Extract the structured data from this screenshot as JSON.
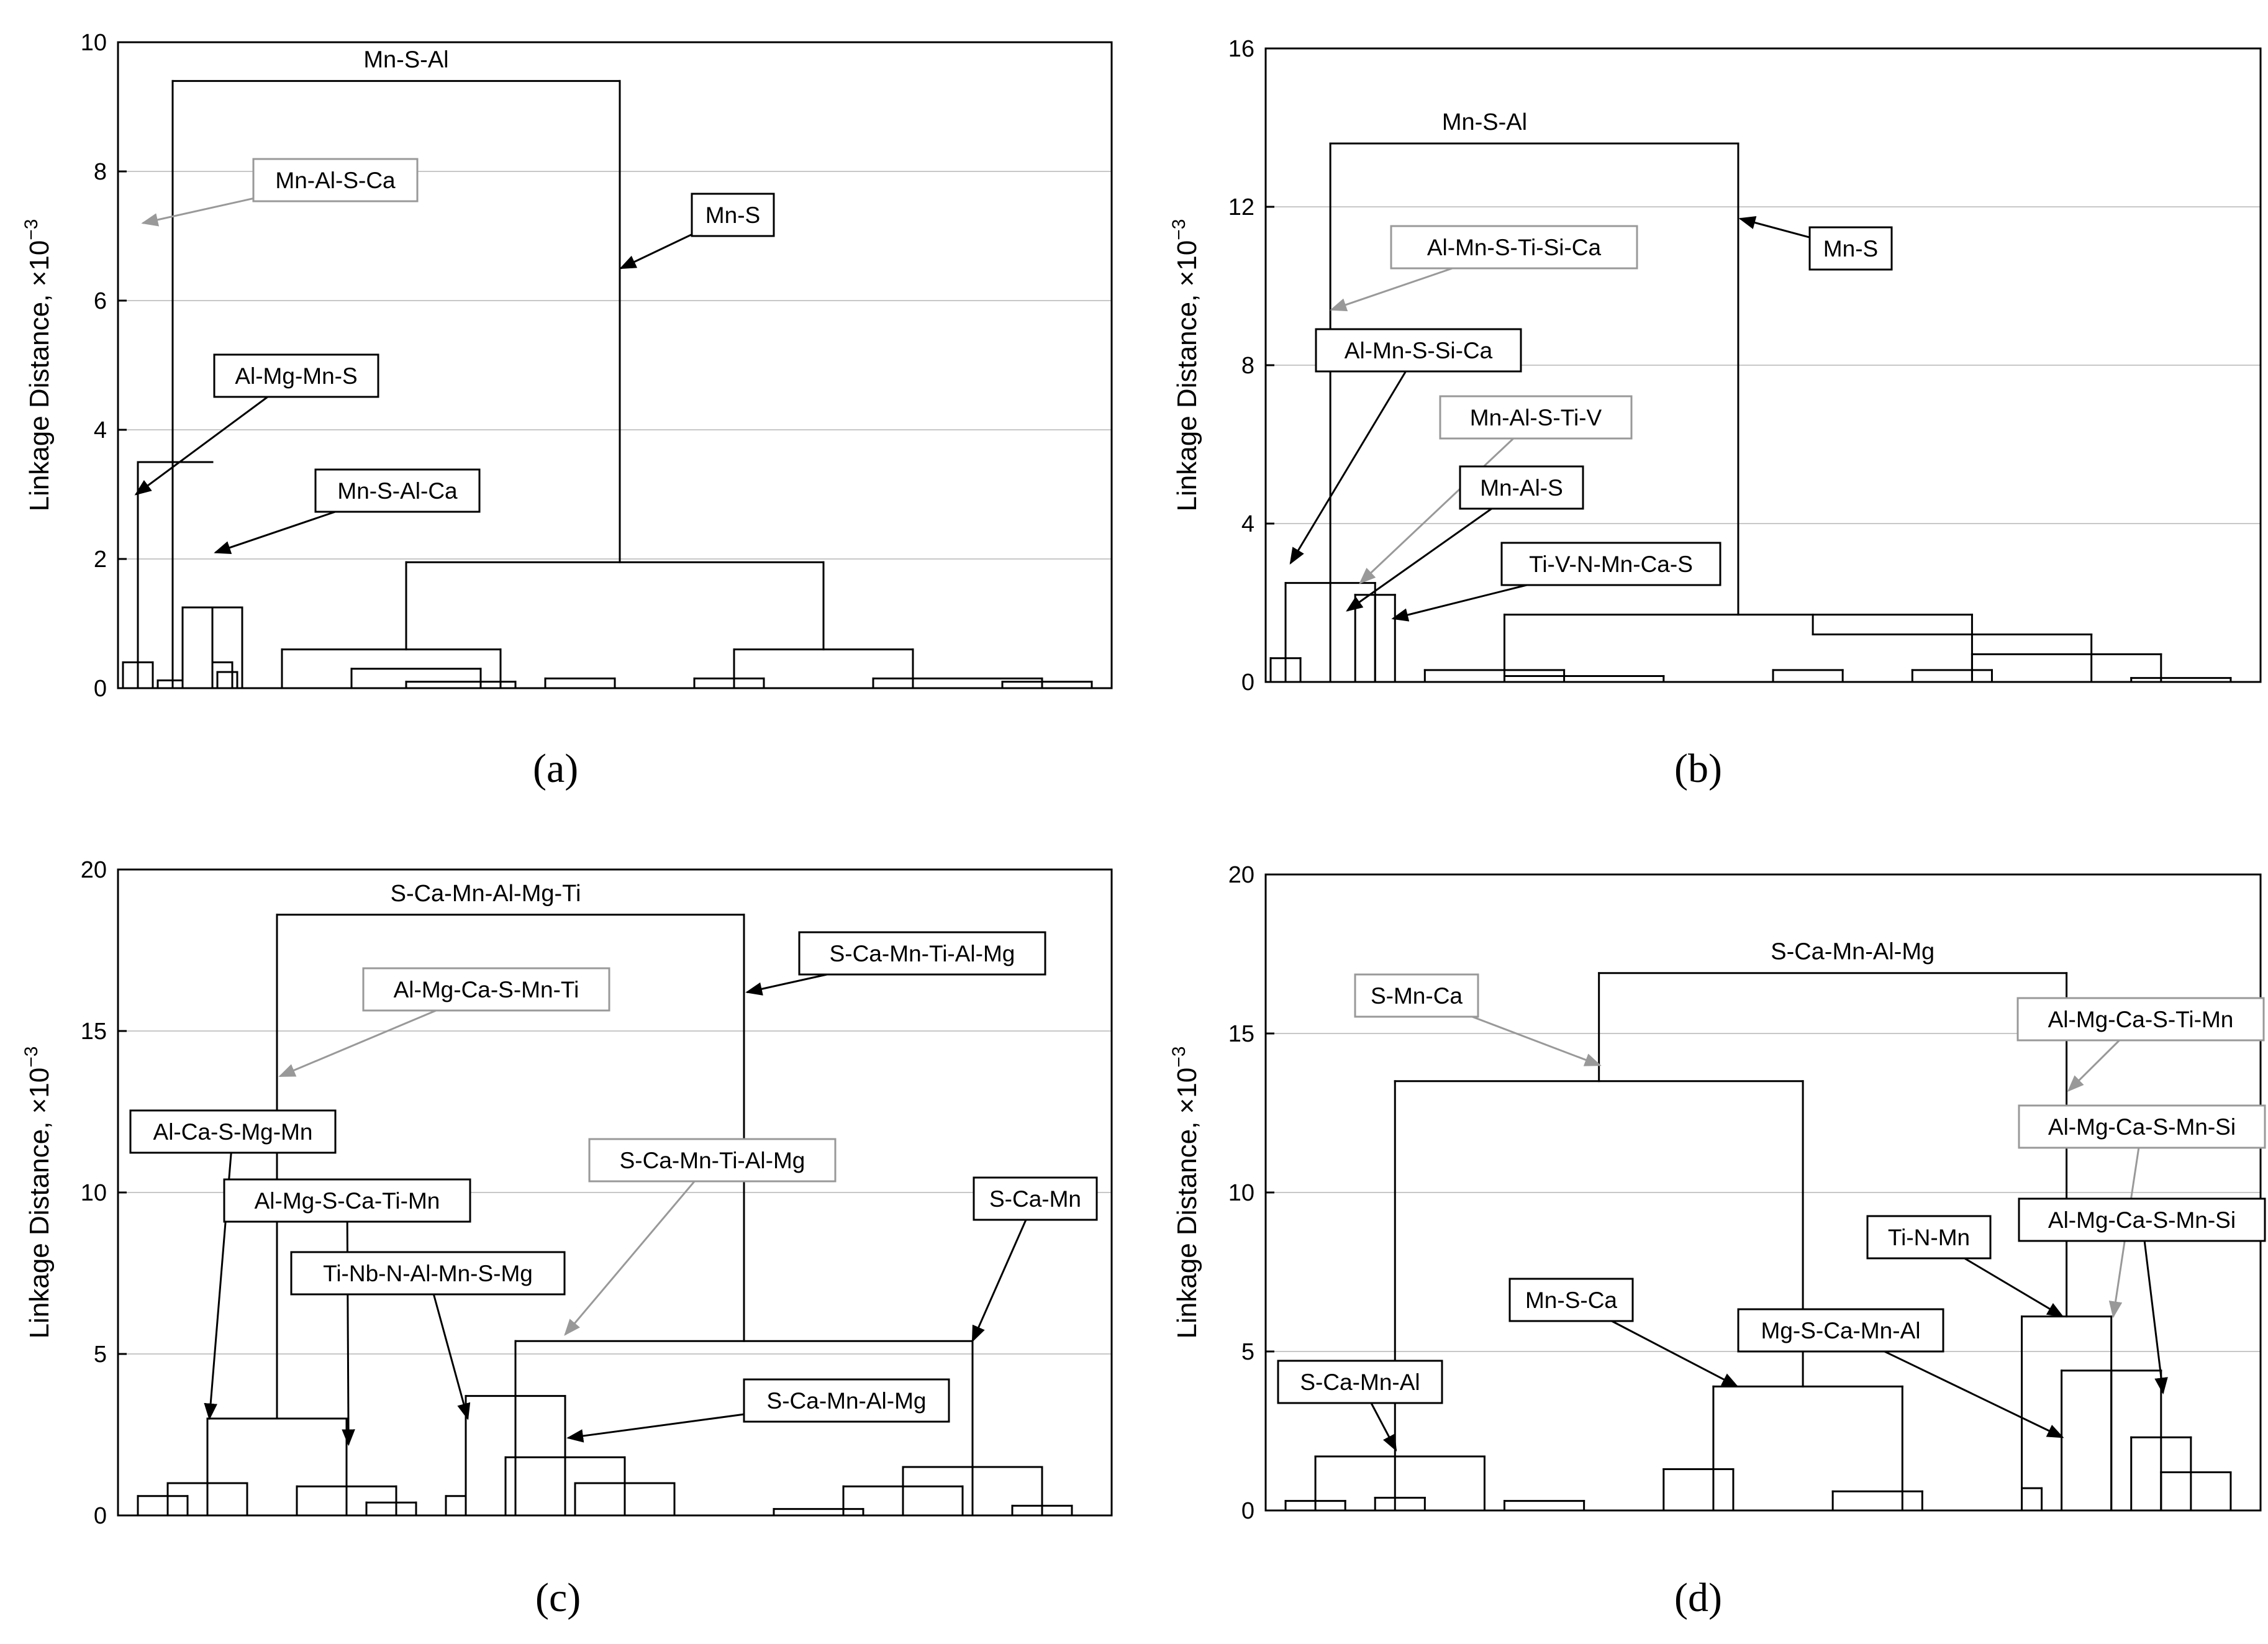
{
  "chart_data": [
    {
      "type": "dendrogram",
      "panel_label": "a",
      "ylabel": "Linkage Distance, ×10",
      "ylabel_exp": "−3",
      "ylim": [
        0,
        10
      ],
      "yticks": [
        0,
        2,
        4,
        6,
        8,
        10
      ],
      "grid": true,
      "xlim": [
        0,
        100
      ],
      "root_label": "Mn-S-Al",
      "links": [
        [
          5.5,
          0,
          5.5,
          3.5
        ],
        [
          2,
          0,
          2,
          3.5
        ],
        [
          2,
          3.5,
          9.5,
          3.5
        ],
        [
          9.5,
          0,
          9.5,
          1.25
        ],
        [
          6.5,
          1.25,
          12.5,
          1.25
        ],
        [
          6.5,
          0,
          6.5,
          1.25
        ],
        [
          12.5,
          0,
          12.5,
          1.25
        ],
        [
          5.5,
          3.5,
          5.5,
          9.4
        ],
        [
          5.5,
          9.4,
          50.5,
          9.4
        ],
        [
          50.5,
          9.4,
          50.5,
          1.95
        ],
        [
          29,
          1.95,
          71,
          1.95
        ],
        [
          29,
          1.95,
          29,
          0.6
        ],
        [
          71,
          1.95,
          71,
          0.6
        ],
        [
          16.5,
          0.6,
          38.5,
          0.6
        ],
        [
          16.5,
          0,
          16.5,
          0.6
        ],
        [
          38.5,
          0,
          38.5,
          0.6
        ],
        [
          23.5,
          0,
          23.5,
          0.3
        ],
        [
          23.5,
          0.3,
          36.5,
          0.3
        ],
        [
          36.5,
          0,
          36.5,
          0.3
        ],
        [
          29,
          0,
          29,
          0.1
        ],
        [
          29,
          0.1,
          40,
          0.1
        ],
        [
          40,
          0,
          40,
          0.1
        ],
        [
          43,
          0,
          43,
          0.15
        ],
        [
          43,
          0.15,
          50,
          0.15
        ],
        [
          50,
          0,
          50,
          0.15
        ],
        [
          62,
          0.6,
          80,
          0.6
        ],
        [
          62,
          0,
          62,
          0.6
        ],
        [
          80,
          0,
          80,
          0.6
        ],
        [
          58,
          0,
          58,
          0.15
        ],
        [
          58,
          0.15,
          65,
          0.15
        ],
        [
          65,
          0,
          65,
          0.15
        ],
        [
          76,
          0,
          76,
          0.15
        ],
        [
          76,
          0.15,
          93,
          0.15
        ],
        [
          93,
          0,
          93,
          0.15
        ],
        [
          89,
          0,
          89,
          0.1
        ],
        [
          89,
          0.1,
          98,
          0.1
        ],
        [
          98,
          0,
          98,
          0.1
        ],
        [
          0.5,
          0,
          0.5,
          0.4
        ],
        [
          0.5,
          0.4,
          3.5,
          0.4
        ],
        [
          3.5,
          0,
          3.5,
          0.4
        ],
        [
          9.5,
          0,
          9.5,
          0.4
        ],
        [
          9.5,
          0.4,
          11.5,
          0.4
        ],
        [
          11.5,
          0,
          11.5,
          0.4
        ],
        [
          4,
          0,
          4,
          0.12
        ],
        [
          4,
          0.12,
          6.5,
          0.12
        ],
        [
          6.5,
          0,
          6.5,
          0.12
        ],
        [
          10,
          0,
          10,
          0.25
        ],
        [
          10,
          0.25,
          12,
          0.25
        ],
        [
          12,
          0,
          12,
          0.25
        ]
      ]
    },
    {
      "type": "dendrogram",
      "panel_label": "b",
      "ylabel": "Linkage Distance, ×10",
      "ylabel_exp": "−3",
      "ylim": [
        0,
        16
      ],
      "yticks": [
        0,
        4,
        8,
        12,
        16
      ],
      "grid": true,
      "xlim": [
        0,
        100
      ],
      "root_label": "Mn-S-Al",
      "links": [
        [
          6.5,
          0,
          6.5,
          2.5
        ],
        [
          2,
          2.5,
          11,
          2.5
        ],
        [
          2,
          0,
          2,
          2.5
        ],
        [
          11,
          0,
          11,
          2.5
        ],
        [
          11,
          0,
          11,
          2.2
        ],
        [
          9,
          2.2,
          13,
          2.2
        ],
        [
          9,
          0,
          9,
          2.2
        ],
        [
          13,
          0,
          13,
          2.2
        ],
        [
          6.5,
          2.5,
          6.5,
          13.6
        ],
        [
          6.5,
          13.6,
          47.5,
          13.6
        ],
        [
          47.5,
          13.6,
          47.5,
          1.7
        ],
        [
          24,
          1.7,
          71,
          1.7
        ],
        [
          24,
          0,
          24,
          1.7
        ],
        [
          71,
          0,
          71,
          1.7
        ],
        [
          55,
          1.7,
          55,
          1.2
        ],
        [
          55,
          1.2,
          83,
          1.2
        ],
        [
          83,
          0,
          83,
          1.2
        ],
        [
          71,
          0,
          71,
          0.7
        ],
        [
          71,
          0.7,
          90,
          0.7
        ],
        [
          90,
          0,
          90,
          0.7
        ],
        [
          0.5,
          0,
          0.5,
          0.6
        ],
        [
          0.5,
          0.6,
          3.5,
          0.6
        ],
        [
          3.5,
          0,
          3.5,
          0.6
        ],
        [
          16,
          0,
          16,
          0.3
        ],
        [
          16,
          0.3,
          30,
          0.3
        ],
        [
          30,
          0,
          30,
          0.3
        ],
        [
          24,
          0,
          24,
          0.15
        ],
        [
          24,
          0.15,
          40,
          0.15
        ],
        [
          40,
          0,
          40,
          0.15
        ],
        [
          51,
          0,
          51,
          0.3
        ],
        [
          51,
          0.3,
          58,
          0.3
        ],
        [
          58,
          0,
          58,
          0.3
        ],
        [
          65,
          0,
          65,
          0.3
        ],
        [
          65,
          0.3,
          73,
          0.3
        ],
        [
          73,
          0,
          73,
          0.3
        ],
        [
          87,
          0,
          87,
          0.1
        ],
        [
          87,
          0.1,
          97,
          0.1
        ],
        [
          97,
          0,
          97,
          0.1
        ]
      ]
    },
    {
      "type": "dendrogram",
      "panel_label": "c",
      "ylabel": "Linkage Distance, ×10",
      "ylabel_exp": "−3",
      "ylim": [
        0,
        20
      ],
      "yticks": [
        0,
        5,
        10,
        15,
        20
      ],
      "grid": true,
      "xlim": [
        0,
        100
      ],
      "root_label": "S-Ca-Mn-Al-Mg-Ti",
      "links": [
        [
          9,
          0,
          9,
          3
        ],
        [
          9,
          3,
          23,
          3
        ],
        [
          23,
          0,
          23,
          3
        ],
        [
          5,
          0,
          5,
          1
        ],
        [
          5,
          1,
          13,
          1
        ],
        [
          13,
          0,
          13,
          1
        ],
        [
          18,
          0,
          18,
          0.9
        ],
        [
          18,
          0.9,
          28,
          0.9
        ],
        [
          28,
          0,
          28,
          0.9
        ],
        [
          16,
          3,
          16,
          18.6
        ],
        [
          16,
          18.6,
          63,
          18.6
        ],
        [
          63,
          18.6,
          63,
          5.4
        ],
        [
          40,
          5.4,
          86,
          5.4
        ],
        [
          40,
          0,
          40,
          5.4
        ],
        [
          86,
          0,
          86,
          5.4
        ],
        [
          35,
          0,
          35,
          3.7
        ],
        [
          35,
          3.7,
          45,
          3.7
        ],
        [
          45,
          0,
          45,
          3.7
        ],
        [
          39,
          0,
          39,
          1.8
        ],
        [
          39,
          1.8,
          51,
          1.8
        ],
        [
          51,
          0,
          51,
          1.8
        ],
        [
          46,
          0,
          46,
          1
        ],
        [
          46,
          1,
          56,
          1
        ],
        [
          56,
          0,
          56,
          1
        ],
        [
          33,
          0,
          33,
          0.6
        ],
        [
          33,
          0.6,
          35,
          0.6
        ],
        [
          35,
          0,
          35,
          0.6
        ],
        [
          73,
          0,
          73,
          0.9
        ],
        [
          73,
          0.9,
          85,
          0.9
        ],
        [
          85,
          0,
          85,
          0.9
        ],
        [
          79,
          0,
          79,
          1.5
        ],
        [
          79,
          1.5,
          93,
          1.5
        ],
        [
          93,
          0,
          93,
          1.5
        ],
        [
          66,
          0,
          66,
          0.2
        ],
        [
          66,
          0.2,
          75,
          0.2
        ],
        [
          75,
          0,
          75,
          0.2
        ],
        [
          90,
          0,
          90,
          0.3
        ],
        [
          90,
          0.3,
          96,
          0.3
        ],
        [
          96,
          0,
          96,
          0.3
        ],
        [
          2,
          0,
          2,
          0.6
        ],
        [
          2,
          0.6,
          7,
          0.6
        ],
        [
          7,
          0,
          7,
          0.6
        ],
        [
          25,
          0,
          25,
          0.4
        ],
        [
          25,
          0.4,
          30,
          0.4
        ],
        [
          30,
          0,
          30,
          0.4
        ]
      ]
    },
    {
      "type": "dendrogram",
      "panel_label": "d",
      "ylabel": "Linkage Distance, ×10",
      "ylabel_exp": "−3",
      "ylim": [
        0,
        20
      ],
      "yticks": [
        0,
        5,
        10,
        15,
        20
      ],
      "grid": true,
      "xlim": [
        0,
        100
      ],
      "root_label": "S-Ca-Mn-Al-Mg",
      "links": [
        [
          13,
          0,
          13,
          1.7
        ],
        [
          5,
          1.7,
          22,
          1.7
        ],
        [
          5,
          0,
          5,
          1.7
        ],
        [
          22,
          0,
          22,
          1.7
        ],
        [
          13,
          1.7,
          13,
          13.5
        ],
        [
          13,
          13.5,
          54,
          13.5
        ],
        [
          54,
          13.5,
          54,
          3.9
        ],
        [
          45,
          3.9,
          64,
          3.9
        ],
        [
          45,
          0,
          45,
          3.9
        ],
        [
          64,
          0,
          64,
          3.9
        ],
        [
          40,
          0,
          40,
          1.3
        ],
        [
          40,
          1.3,
          47,
          1.3
        ],
        [
          47,
          0,
          47,
          1.3
        ],
        [
          57,
          0,
          57,
          0.6
        ],
        [
          57,
          0.6,
          66,
          0.6
        ],
        [
          66,
          0,
          66,
          0.6
        ],
        [
          33.5,
          13.5,
          33.5,
          16.9
        ],
        [
          33.5,
          16.9,
          80.5,
          16.9
        ],
        [
          80.5,
          16.9,
          80.5,
          6.1
        ],
        [
          76,
          6.1,
          85,
          6.1
        ],
        [
          76,
          0,
          76,
          6.1
        ],
        [
          85,
          0,
          85,
          6.1
        ],
        [
          85,
          0,
          85,
          4.4
        ],
        [
          80,
          4.4,
          90,
          4.4
        ],
        [
          80,
          0,
          80,
          4.4
        ],
        [
          90,
          0,
          90,
          4.4
        ],
        [
          87,
          0,
          87,
          2.3
        ],
        [
          87,
          2.3,
          93,
          2.3
        ],
        [
          93,
          0,
          93,
          2.3
        ],
        [
          90,
          0,
          90,
          1.2
        ],
        [
          90,
          1.2,
          97,
          1.2
        ],
        [
          97,
          0,
          97,
          1.2
        ],
        [
          76,
          0,
          76,
          0.7
        ],
        [
          76,
          0.7,
          78,
          0.7
        ],
        [
          78,
          0,
          78,
          0.7
        ],
        [
          2,
          0,
          2,
          0.3
        ],
        [
          2,
          0.3,
          8,
          0.3
        ],
        [
          8,
          0,
          8,
          0.3
        ],
        [
          11,
          0,
          11,
          0.4
        ],
        [
          11,
          0.4,
          16,
          0.4
        ],
        [
          16,
          0,
          16,
          0.4
        ],
        [
          24,
          0,
          24,
          0.3
        ],
        [
          24,
          0.3,
          32,
          0.3
        ],
        [
          32,
          0,
          32,
          0.3
        ]
      ]
    }
  ],
  "annotations": {
    "a": [
      {
        "label": "Mn-Al-S-Ca",
        "grey": true
      },
      {
        "label": "Mn-S",
        "grey": false
      },
      {
        "label": "Al-Mg-Mn-S",
        "grey": false
      },
      {
        "label": "Mn-S-Al-Ca",
        "grey": false
      }
    ],
    "b": [
      {
        "label": "Al-Mn-S-Ti-Si-Ca",
        "grey": true
      },
      {
        "label": "Mn-S",
        "grey": false
      },
      {
        "label": "Al-Mn-S-Si-Ca",
        "grey": false
      },
      {
        "label": "Mn-Al-S-Ti-V",
        "grey": true
      },
      {
        "label": "Mn-Al-S",
        "grey": false
      },
      {
        "label": "Ti-V-N-Mn-Ca-S",
        "grey": false
      }
    ],
    "c": [
      {
        "label": "S-Ca-Mn-Ti-Al-Mg",
        "grey": false
      },
      {
        "label": "Al-Mg-Ca-S-Mn-Ti",
        "grey": true
      },
      {
        "label": "Al-Ca-S-Mg-Mn",
        "grey": false
      },
      {
        "label": "S-Ca-Mn-Ti-Al-Mg",
        "grey": true
      },
      {
        "label": "S-Ca-Mn",
        "grey": false
      },
      {
        "label": "Al-Mg-S-Ca-Ti-Mn",
        "grey": false
      },
      {
        "label": "Ti-Nb-N-Al-Mn-S-Mg",
        "grey": false
      },
      {
        "label": "S-Ca-Mn-Al-Mg",
        "grey": false
      }
    ],
    "d": [
      {
        "label": "S-Mn-Ca",
        "grey": true
      },
      {
        "label": "Al-Mg-Ca-S-Ti-Mn",
        "grey": true
      },
      {
        "label": "Al-Mg-Ca-S-Mn-Si",
        "grey": true
      },
      {
        "label": "Ti-N-Mn",
        "grey": false
      },
      {
        "label": "Al-Mg-Ca-S-Mn-Si",
        "grey": false
      },
      {
        "label": "Mn-S-Ca",
        "grey": false
      },
      {
        "label": "Mg-S-Ca-Mn-Al",
        "grey": false
      },
      {
        "label": "S-Ca-Mn-Al",
        "grey": false
      }
    ]
  },
  "captions": [
    "(a)",
    "(b)",
    "(c)",
    "(d)"
  ],
  "colors": {
    "primary": "#000000",
    "grey": "#999999",
    "grid": "#c8c8c8"
  }
}
